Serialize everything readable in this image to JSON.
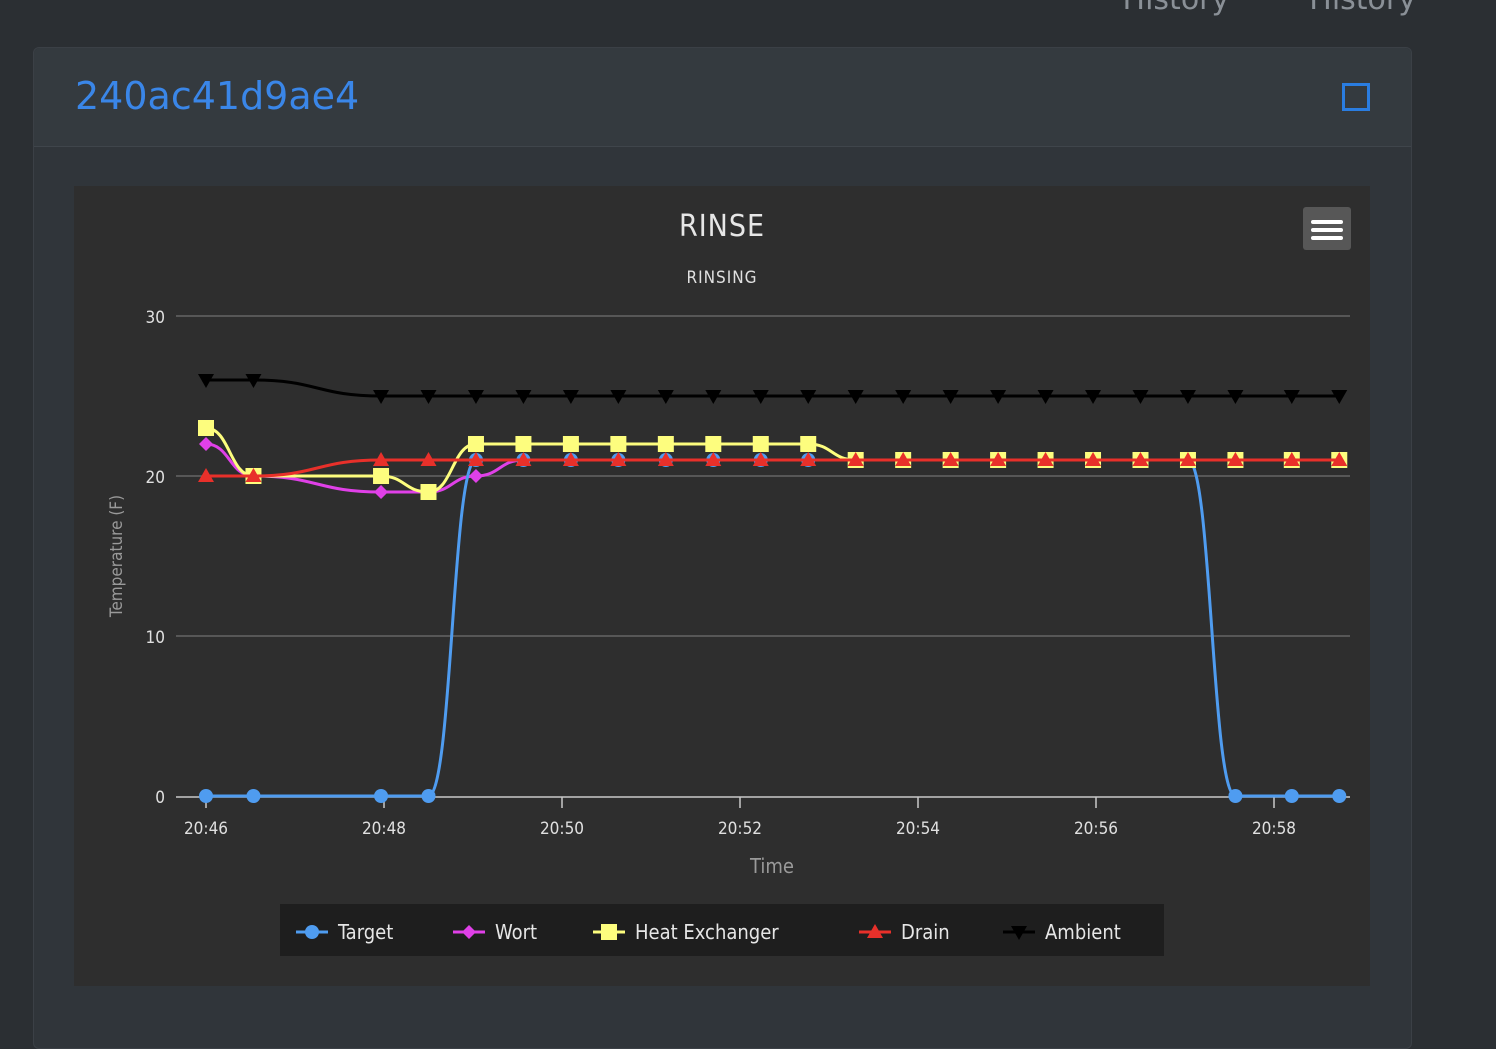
{
  "header": {
    "links": [
      "History",
      "History"
    ]
  },
  "card": {
    "title": "240ac41d9ae4"
  },
  "chart_data": {
    "type": "line",
    "title": "RINSE",
    "subtitle": "RINSING",
    "xlabel": "Time",
    "ylabel": "Temperature (F)",
    "ylim": [
      0,
      30
    ],
    "yticks": [
      0,
      10,
      20,
      30
    ],
    "xticks": [
      "20:46",
      "20:48",
      "20:50",
      "20:52",
      "20:54",
      "20:56",
      "20:58"
    ],
    "x": [
      "20:46:00",
      "20:46:32",
      "20:47:58",
      "20:48:30",
      "20:49:02",
      "20:49:34",
      "20:50:06",
      "20:50:38",
      "20:51:10",
      "20:51:42",
      "20:52:14",
      "20:52:46",
      "20:53:18",
      "20:53:50",
      "20:54:22",
      "20:54:54",
      "20:55:26",
      "20:55:58",
      "20:56:30",
      "20:57:02",
      "20:57:34",
      "20:58:12",
      "20:58:44"
    ],
    "grid": true,
    "legend_position": "bottom",
    "series": [
      {
        "name": "Target",
        "color": "#4f9cf0",
        "marker": "circle",
        "values": [
          0,
          0,
          0,
          0,
          21,
          21,
          21,
          21,
          21,
          21,
          21,
          21,
          21,
          21,
          21,
          21,
          21,
          21,
          21,
          21,
          0,
          0,
          0
        ]
      },
      {
        "name": "Wort",
        "color": "#e040e8",
        "marker": "diamond",
        "values": [
          22,
          20,
          19,
          19,
          20,
          21,
          21,
          21,
          21,
          21,
          21,
          21,
          21,
          21,
          21,
          21,
          21,
          21,
          21,
          21,
          21,
          21,
          21
        ]
      },
      {
        "name": "Heat Exchanger",
        "color": "#fdfd7e",
        "marker": "square",
        "values": [
          23,
          20,
          20,
          19,
          22,
          22,
          22,
          22,
          22,
          22,
          22,
          22,
          21,
          21,
          21,
          21,
          21,
          21,
          21,
          21,
          21,
          21,
          21
        ]
      },
      {
        "name": "Drain",
        "color": "#e8302a",
        "marker": "triangle",
        "values": [
          20,
          20,
          21,
          21,
          21,
          21,
          21,
          21,
          21,
          21,
          21,
          21,
          21,
          21,
          21,
          21,
          21,
          21,
          21,
          21,
          21,
          21,
          21
        ]
      },
      {
        "name": "Ambient",
        "color": "#000000",
        "marker": "triangle-down",
        "values": [
          26,
          26,
          25,
          25,
          25,
          25,
          25,
          25,
          25,
          25,
          25,
          25,
          25,
          25,
          25,
          25,
          25,
          25,
          25,
          25,
          25,
          25,
          25
        ]
      }
    ],
    "menu_icon": "hamburger-icon"
  }
}
